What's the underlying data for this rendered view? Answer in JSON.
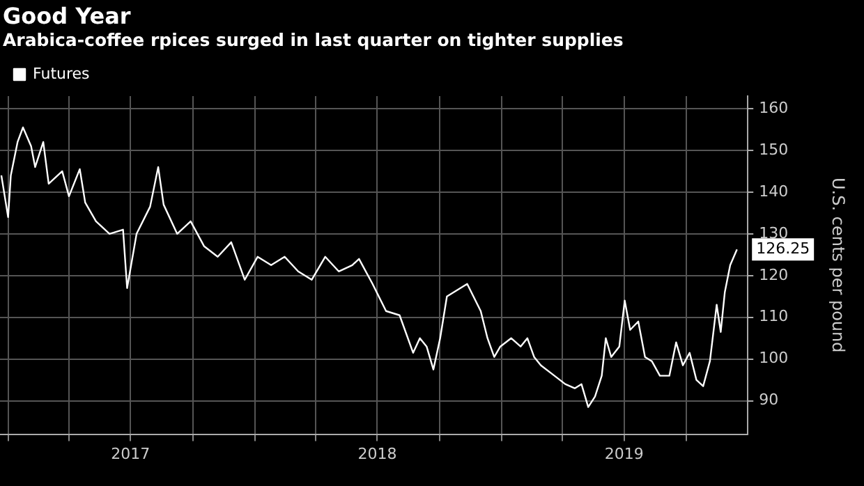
{
  "chart_data": {
    "type": "line",
    "title": "Good Year",
    "subtitle": "Arabica-coffee rpices surged in last quarter on tighter supplies",
    "ylabel": "U.S. cents per pound",
    "x": [
      "2016-12-22",
      "2017-01-01",
      "2017-01-05",
      "2017-01-15",
      "2017-01-23",
      "2017-02-04",
      "2017-02-10",
      "2017-02-22",
      "2017-03-02",
      "2017-03-22",
      "2017-04-01",
      "2017-04-17",
      "2017-04-25",
      "2017-05-11",
      "2017-05-31",
      "2017-06-20",
      "2017-06-26",
      "2017-07-10",
      "2017-07-30",
      "2017-08-11",
      "2017-08-19",
      "2017-09-08",
      "2017-09-28",
      "2017-10-18",
      "2017-11-07",
      "2017-11-27",
      "2017-12-17",
      "2018-01-05",
      "2018-01-25",
      "2018-02-14",
      "2018-03-06",
      "2018-03-26",
      "2018-04-15",
      "2018-05-05",
      "2018-05-25",
      "2018-06-04",
      "2018-06-24",
      "2018-07-14",
      "2018-08-03",
      "2018-08-23",
      "2018-09-02",
      "2018-09-12",
      "2018-09-22",
      "2018-10-02",
      "2018-10-12",
      "2018-11-11",
      "2018-12-01",
      "2018-12-11",
      "2018-12-21",
      "2018-12-30",
      "2019-01-15",
      "2019-01-29",
      "2019-02-08",
      "2019-02-18",
      "2019-02-28",
      "2019-03-20",
      "2019-04-05",
      "2019-04-19",
      "2019-04-29",
      "2019-05-09",
      "2019-05-19",
      "2019-05-29",
      "2019-06-04",
      "2019-06-12",
      "2019-06-24",
      "2019-07-02",
      "2019-07-10",
      "2019-07-22",
      "2019-08-01",
      "2019-08-11",
      "2019-08-23",
      "2019-09-06",
      "2019-09-16",
      "2019-09-26",
      "2019-10-06",
      "2019-10-16",
      "2019-10-26",
      "2019-11-05",
      "2019-11-15",
      "2019-11-21",
      "2019-11-27",
      "2019-12-05",
      "2019-12-15"
    ],
    "series": [
      {
        "name": "Futures",
        "color": "#ffffff",
        "values": [
          144,
          134,
          144,
          152,
          155.5,
          151,
          146,
          152,
          142,
          145,
          139,
          145.5,
          137.5,
          133,
          130,
          131,
          117,
          130,
          136.5,
          146,
          137,
          130,
          133,
          127,
          124.5,
          128,
          119,
          124.5,
          122.5,
          124.5,
          121,
          119,
          124.5,
          121,
          122.5,
          124,
          118,
          111.5,
          110.5,
          101.5,
          105,
          103,
          97.5,
          105,
          115,
          118,
          111.5,
          105,
          100.5,
          103,
          105,
          103,
          105,
          100.5,
          98.5,
          96,
          94,
          93,
          94,
          88.5,
          91,
          96,
          105,
          100.5,
          103,
          114,
          107,
          109,
          100.5,
          99.5,
          96,
          96,
          104,
          98.5,
          101.5,
          95,
          93.5,
          99.5,
          113,
          106.5,
          116,
          122.5,
          126.25
        ]
      }
    ],
    "ylim": [
      82,
      163
    ],
    "yticks": [
      90,
      100,
      110,
      120,
      130,
      140,
      150,
      160
    ],
    "xlim": [
      "2016-12-20",
      "2019-12-31"
    ],
    "xticks": [
      {
        "value": "2017-01-01",
        "label": null
      },
      {
        "value": "2017-04-01",
        "label": null
      },
      {
        "value": "2017-07-01",
        "label": "2017"
      },
      {
        "value": "2017-10-01",
        "label": null
      },
      {
        "value": "2018-01-01",
        "label": null
      },
      {
        "value": "2018-04-01",
        "label": null
      },
      {
        "value": "2018-07-01",
        "label": "2018"
      },
      {
        "value": "2018-10-01",
        "label": null
      },
      {
        "value": "2019-01-01",
        "label": null
      },
      {
        "value": "2019-04-01",
        "label": null
      },
      {
        "value": "2019-07-01",
        "label": "2019"
      },
      {
        "value": "2019-10-01",
        "label": null
      }
    ],
    "annotations": [
      {
        "text": "126.25",
        "x": "2019-12-15",
        "y": 126.25
      }
    ],
    "grid": true,
    "legend": "top left",
    "marker": "none",
    "line_style": "solid"
  }
}
